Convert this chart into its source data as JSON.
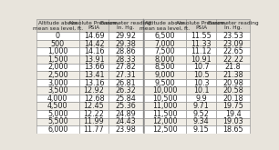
{
  "headers_left": [
    "Altitude above\nmean sea level, ft.",
    "Absolute Pressure,\nPSIA",
    "Barometer reading\nIn. Hg."
  ],
  "headers_right": [
    "Altitude above\nmean sea level, ft.",
    "Absolute Pressure,\nPSIA",
    "Barometer reading\nIn. Hg."
  ],
  "rows_left": [
    [
      "0",
      "14.69",
      "29.92"
    ],
    [
      "500",
      "14.42",
      "29.38"
    ],
    [
      "1,000",
      "14.16",
      "28.86"
    ],
    [
      "1,500",
      "13.91",
      "28.33"
    ],
    [
      "2,000",
      "13.66",
      "27.82"
    ],
    [
      "2,500",
      "13.41",
      "27.31"
    ],
    [
      "3,000",
      "13.16",
      "26.81"
    ],
    [
      "3,500",
      "12.92",
      "26.32"
    ],
    [
      "4,000",
      "12.68",
      "25.84"
    ],
    [
      "4,500",
      "12.45",
      "25.36"
    ],
    [
      "5,000",
      "12.22",
      "24.89"
    ],
    [
      "5,500",
      "11.99",
      "24.43"
    ],
    [
      "6,000",
      "11.77",
      "23.98"
    ]
  ],
  "rows_right": [
    [
      "6,500",
      "11.55",
      "23.53"
    ],
    [
      "7,000",
      "11.33",
      "23.09"
    ],
    [
      "7,500",
      "11.12",
      "22.65"
    ],
    [
      "8,000",
      "10.91",
      "22.22"
    ],
    [
      "8,500",
      "10.7",
      "21.8"
    ],
    [
      "9,000",
      "10.5",
      "21.38"
    ],
    [
      "9,500",
      "10.3",
      "20.98"
    ],
    [
      "10,000",
      "10.1",
      "20.58"
    ],
    [
      "10,500",
      "9.9",
      "20.18"
    ],
    [
      "11,000",
      "9.71",
      "19.75"
    ],
    [
      "11,500",
      "9.52",
      "19.4"
    ],
    [
      "12,000",
      "9.34",
      "19.03"
    ],
    [
      "12,500",
      "9.15",
      "18.65"
    ]
  ],
  "bg_color": "#e8e4dc",
  "row_color_odd": "#ffffff",
  "row_color_even": "#f0ede6",
  "header_bg": "#d8d4cc",
  "border_color": "#888888",
  "header_font_size": 4.2,
  "cell_font_size": 5.8,
  "text_color": "#222222"
}
